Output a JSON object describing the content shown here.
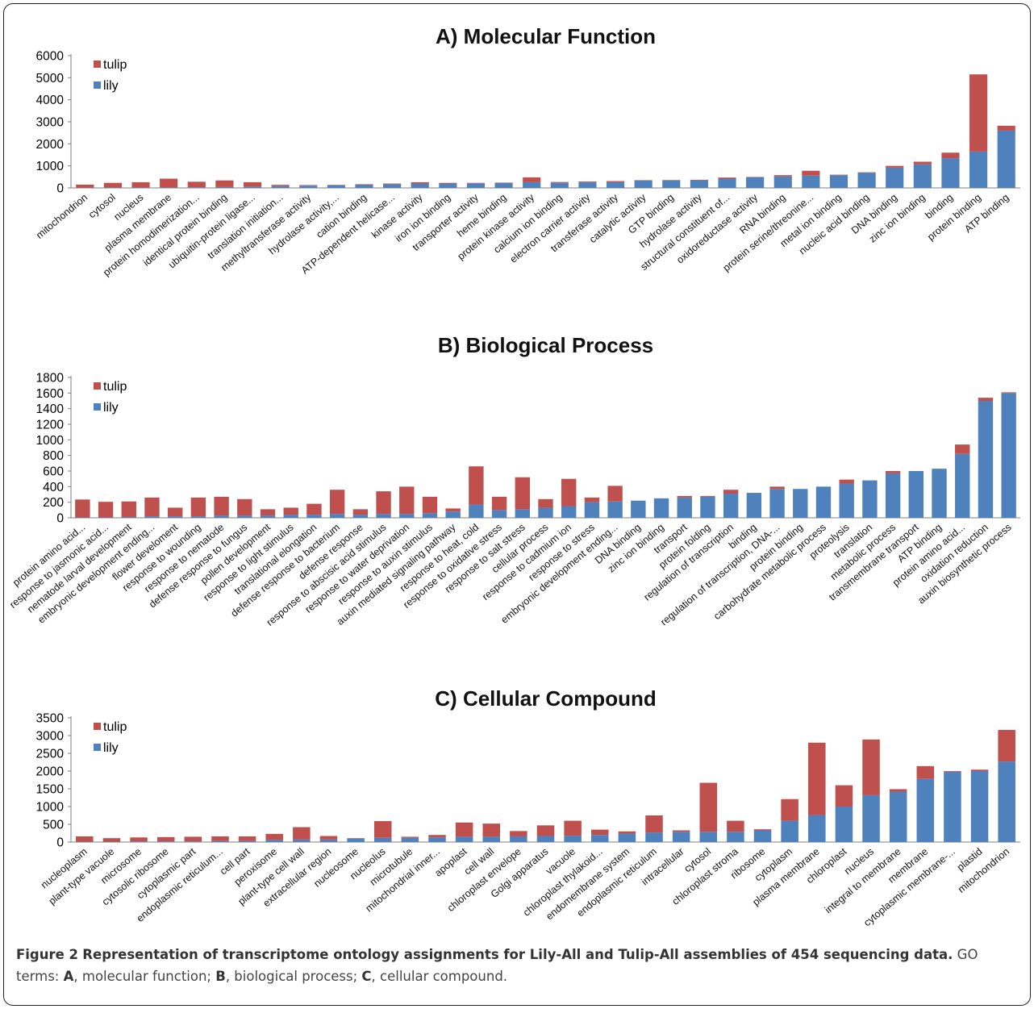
{
  "colors": {
    "lily": "#4f81bd",
    "tulip": "#c0504d"
  },
  "chart_data": [
    {
      "type": "bar",
      "stacked": true,
      "title": "A) Molecular Function",
      "ylim": [
        0,
        6000
      ],
      "yticks": [
        0,
        1000,
        2000,
        3000,
        4000,
        5000,
        6000
      ],
      "legend": "top-left",
      "categories": [
        "mitochondrion",
        "cytosol",
        "nucleus",
        "plasma membrane",
        "protein homodimerization...",
        "identical protein binding",
        "ubiquitin-protein ligase...",
        "translation initiation...",
        "methyltransferase activity",
        "hydrolase activity,...",
        "cation binding",
        "ATP-dependent helicase...",
        "kinase activity",
        "iron ion binding",
        "transporter activity",
        "heme binding",
        "protein kinase activity",
        "calcium ion binding",
        "electron carrier activity",
        "transferase activity",
        "catalytic activity",
        "GTP binding",
        "hydrolase activity",
        "structural constituent of...",
        "oxidoreductase activity",
        "RNA binding",
        "protein serine/threonine...",
        "metal ion binding",
        "nucleic acid binding",
        "DNA binding",
        "zinc ion binding",
        "binding",
        "protein binding",
        "ATP binding"
      ],
      "series": [
        {
          "name": "lily",
          "values": [
            10,
            20,
            20,
            20,
            30,
            40,
            60,
            80,
            100,
            120,
            150,
            170,
            200,
            200,
            210,
            220,
            260,
            230,
            250,
            260,
            330,
            340,
            350,
            420,
            480,
            520,
            560,
            580,
            690,
            920,
            1070,
            1350,
            1650,
            2600
          ]
        },
        {
          "name": "tulip",
          "values": [
            140,
            210,
            240,
            400,
            250,
            300,
            200,
            60,
            30,
            20,
            20,
            30,
            60,
            30,
            20,
            20,
            220,
            40,
            40,
            50,
            20,
            20,
            20,
            50,
            20,
            60,
            220,
            20,
            20,
            80,
            120,
            250,
            3500,
            220
          ]
        }
      ]
    },
    {
      "type": "bar",
      "stacked": true,
      "title": "B) Biological Process",
      "ylim": [
        0,
        1800
      ],
      "yticks": [
        0,
        200,
        400,
        600,
        800,
        1000,
        1200,
        1400,
        1600,
        1800
      ],
      "legend": "top-left",
      "categories": [
        "protein amino acid...",
        "response to jasmonic acid...",
        "nematode larval development",
        "embryonic development ending...",
        "flower develoment",
        "response to wounding",
        "response to nematode",
        "defense response to fungus",
        "pollen development",
        "response to light stimulus",
        "translational elongation",
        "defense response to bacterium",
        "defense response",
        "response to abscisic acid stimulus",
        "response to water deprivation",
        "response to auxin stimulus",
        "auxin mediated signaling pathway",
        "response to heat, cold",
        "response to oxidative stress",
        "response to salt stress",
        "cellular process",
        "response to cadmium ion",
        "response to stress",
        "embryonic development ending...",
        "DNA binding",
        "zinc ion binding",
        "transport",
        "protein folding",
        "regulation of transcription",
        "binding",
        "regulation of transcription, DNA-...",
        "protein binding",
        "carbohydrate metabolic process",
        "proteolysis",
        "translation",
        "metabolic process",
        "transmembrane transport",
        "ATP binding",
        "protein amino acid...",
        "oxidation reduction",
        "auxin biosynthetic process"
      ],
      "series": [
        {
          "name": "lily",
          "values": [
            5,
            5,
            10,
            20,
            20,
            20,
            30,
            30,
            30,
            40,
            40,
            50,
            40,
            50,
            50,
            60,
            80,
            170,
            100,
            110,
            130,
            150,
            200,
            210,
            220,
            250,
            260,
            270,
            310,
            320,
            370,
            370,
            400,
            440,
            480,
            570,
            600,
            630,
            820,
            1500,
            1600
          ]
        },
        {
          "name": "tulip",
          "values": [
            230,
            200,
            200,
            240,
            110,
            240,
            240,
            210,
            80,
            90,
            140,
            310,
            70,
            290,
            350,
            210,
            40,
            490,
            170,
            410,
            110,
            350,
            60,
            200,
            0,
            0,
            20,
            10,
            50,
            0,
            30,
            0,
            0,
            50,
            0,
            30,
            0,
            0,
            120,
            40,
            10
          ]
        }
      ]
    },
    {
      "type": "bar",
      "stacked": true,
      "title": "C) Cellular Compound",
      "ylim": [
        0,
        3500
      ],
      "yticks": [
        0,
        500,
        1000,
        1500,
        2000,
        2500,
        3000,
        3500
      ],
      "legend": "top-left",
      "categories": [
        "nucleoplasm",
        "plant-type vacuole",
        "microsome",
        "cytosolic ribosome",
        "cytoplasmic part",
        "endoplasmic reticulum...",
        "cell part",
        "peroxisome",
        "plant-type cell wall",
        "extracellular region",
        "nucleosome",
        "nucleolus",
        "microtubule",
        "mitochondrial inner...",
        "apoplast",
        "cell wall",
        "chloroplast envelope",
        "Golgi apparatus",
        "vacuole",
        "chloroplast thylakoid...",
        "endomembrane system",
        "endoplasmic reticulum",
        "intracellular",
        "cytosol",
        "chloroplast stroma",
        "ribosome",
        "cytoplasm",
        "plasma membrane",
        "chloroplast",
        "nucleus",
        "integral to membrane",
        "membrane",
        "cytoplasmic membrane-...",
        "plastid",
        "mitochondrion"
      ],
      "series": [
        {
          "name": "lily",
          "values": [
            10,
            10,
            20,
            20,
            20,
            30,
            30,
            60,
            70,
            70,
            100,
            120,
            120,
            130,
            150,
            150,
            160,
            170,
            180,
            200,
            240,
            270,
            290,
            290,
            290,
            330,
            600,
            760,
            1000,
            1320,
            1420,
            1780,
            1980,
            2000,
            2270
          ]
        },
        {
          "name": "tulip",
          "values": [
            150,
            100,
            110,
            120,
            130,
            130,
            130,
            170,
            350,
            100,
            10,
            470,
            30,
            70,
            400,
            370,
            150,
            300,
            420,
            150,
            60,
            480,
            40,
            1380,
            310,
            30,
            610,
            2040,
            600,
            1570,
            70,
            360,
            20,
            40,
            890
          ]
        }
      ]
    }
  ],
  "legend_labels": {
    "tulip": "tulip",
    "lily": "lily"
  },
  "caption": {
    "label": "Figure 2",
    "bold_text": "Representation of transcriptome ontology assignments for Lily-All and Tulip-All assemblies of 454 sequencing data.",
    "rest_1": " GO terms: ",
    "a_letter": "A",
    "a_text": ", molecular function; ",
    "b_letter": "B",
    "b_text": ", biological process; ",
    "c_letter": "C",
    "c_text": ", cellular compound."
  }
}
